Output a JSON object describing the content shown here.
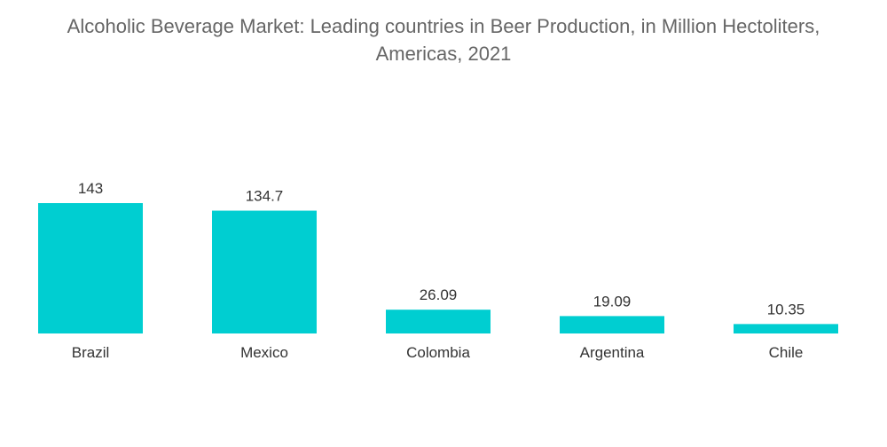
{
  "chart_data": {
    "type": "bar",
    "title_line1": "Alcoholic Beverage Market: Leading countries in Beer Production, in Million Hectoliters,",
    "title_line2": "Americas, 2021",
    "categories": [
      "Brazil",
      "Mexico",
      "Colombia",
      "Argentina",
      "Chile"
    ],
    "values": [
      143,
      134.7,
      26.09,
      19.09,
      10.35
    ],
    "value_labels": [
      "143",
      "134.7",
      "26.09",
      "19.09",
      "10.35"
    ],
    "xlabel": "",
    "ylabel": "",
    "ylim": [
      0,
      143
    ],
    "grid": false,
    "legend": "none",
    "bar_color": "#00CED1"
  }
}
